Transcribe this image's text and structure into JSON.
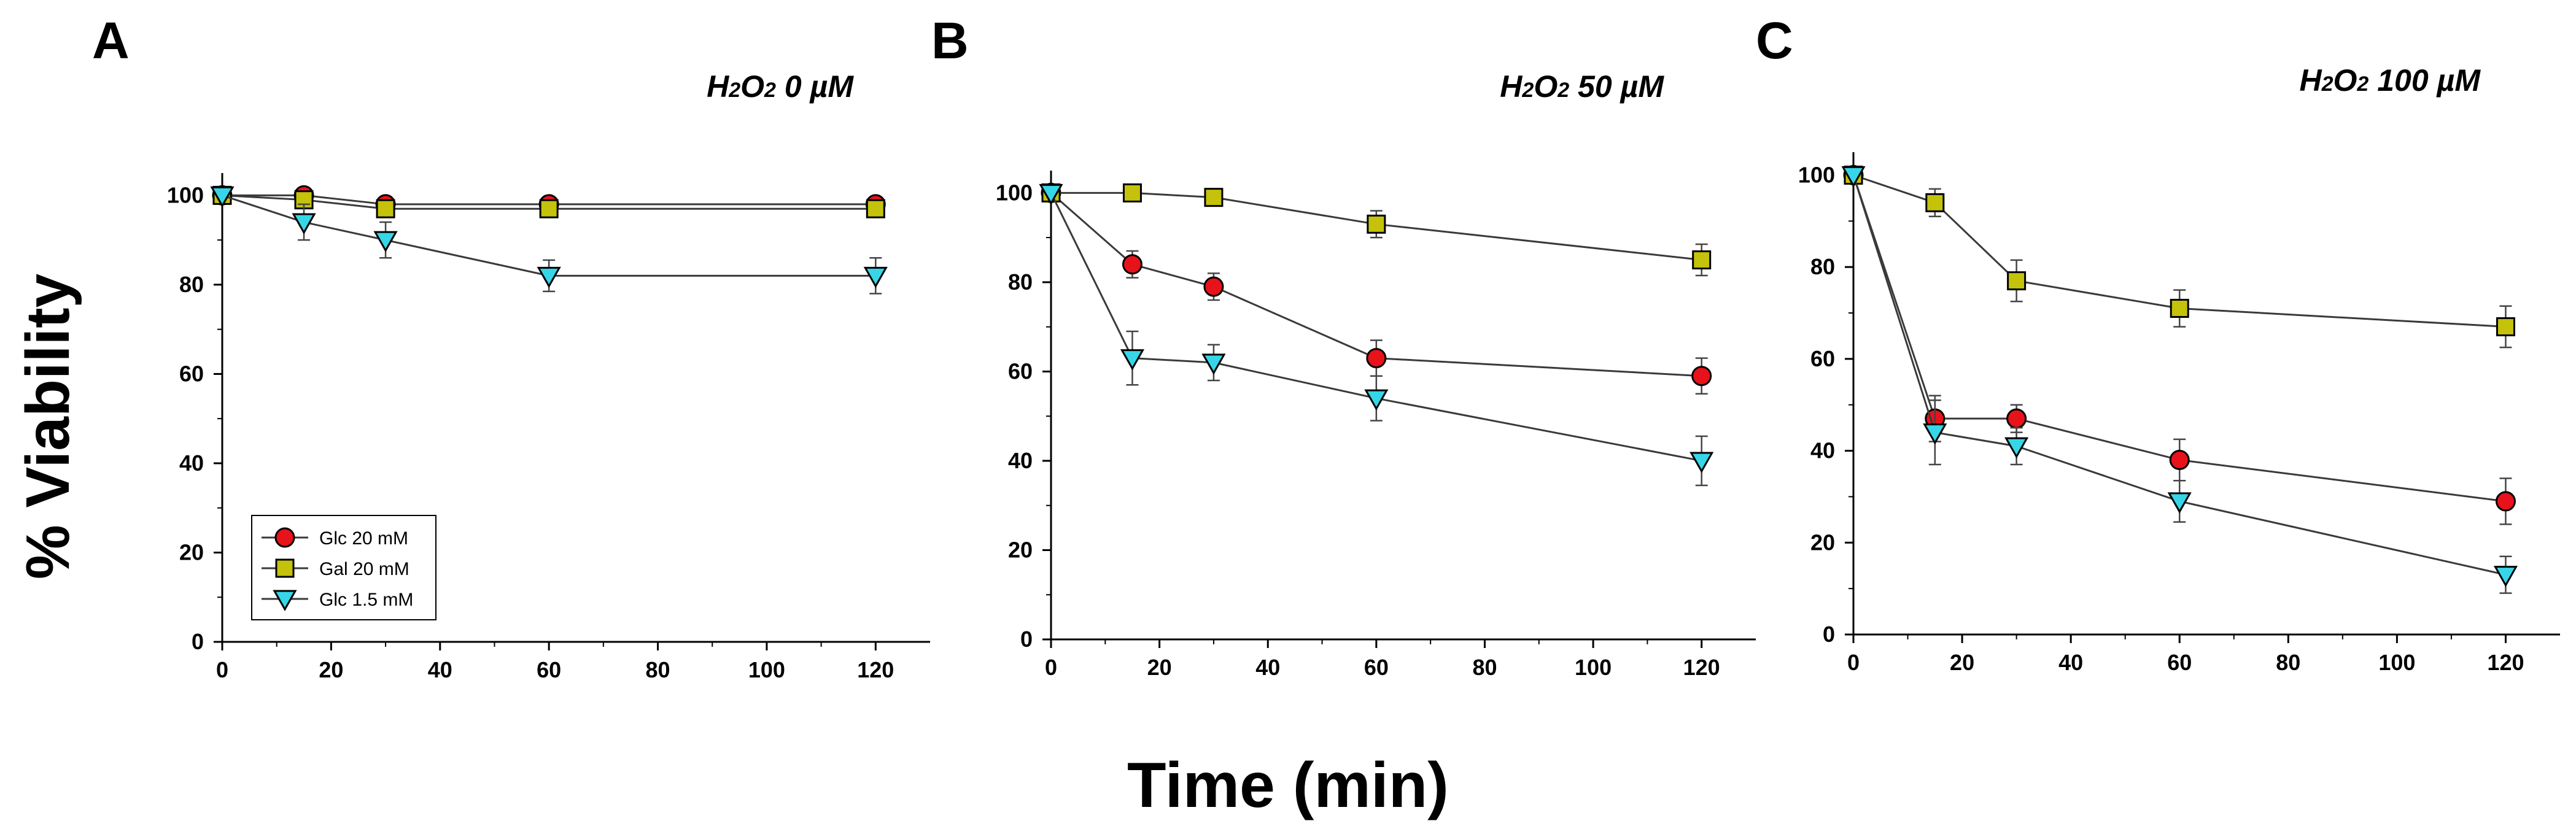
{
  "figure": {
    "ylabel": "% Viability",
    "xlabel": "Time (min)"
  },
  "legend": [
    {
      "name": "Glc 20 mM",
      "color": "#e8121b",
      "marker": "circle"
    },
    {
      "name": "Gal 20 mM",
      "color": "#c4c20a",
      "marker": "square"
    },
    {
      "name": "Glc 1.5 mM",
      "color": "#36d6e8",
      "marker": "triangle-down"
    }
  ],
  "chart_data": [
    {
      "type": "line",
      "panel": "A",
      "title": {
        "prefix": "H",
        "sub1": "2",
        "mid": "O",
        "sub2": "2",
        "rest": " 0 µM"
      },
      "xlim": [
        0,
        130
      ],
      "ylim": [
        0,
        105
      ],
      "xticks": [
        0,
        20,
        40,
        60,
        80,
        100,
        120
      ],
      "yticks": [
        0,
        20,
        40,
        60,
        80,
        100
      ],
      "x": [
        0,
        15,
        30,
        60,
        120
      ],
      "series": [
        {
          "name": "Glc 20 mM",
          "values": [
            100,
            100,
            98,
            98,
            98
          ],
          "errors": [
            0,
            1.5,
            1.5,
            1.5,
            1.5
          ]
        },
        {
          "name": "Gal 20 mM",
          "values": [
            100,
            99,
            97,
            97,
            97
          ],
          "errors": [
            0,
            1.5,
            1.5,
            1.5,
            1.5
          ]
        },
        {
          "name": "Glc 1.5 mM",
          "values": [
            100,
            94,
            90,
            82,
            82
          ],
          "errors": [
            0,
            4,
            4,
            3.5,
            4
          ]
        }
      ]
    },
    {
      "type": "line",
      "panel": "B",
      "title": {
        "prefix": "H",
        "sub1": "2",
        "mid": "O",
        "sub2": "2",
        "rest": " 50 µM"
      },
      "xlim": [
        0,
        130
      ],
      "ylim": [
        0,
        105
      ],
      "xticks": [
        0,
        20,
        40,
        60,
        80,
        100,
        120
      ],
      "yticks": [
        0,
        20,
        40,
        60,
        80,
        100
      ],
      "x": [
        0,
        15,
        30,
        60,
        120
      ],
      "series": [
        {
          "name": "Glc 20 mM",
          "values": [
            100,
            84,
            79,
            63,
            59
          ],
          "errors": [
            0,
            3,
            3,
            4,
            4
          ]
        },
        {
          "name": "Gal 20 mM",
          "values": [
            100,
            100,
            99,
            93,
            85
          ],
          "errors": [
            0,
            1,
            1.5,
            3,
            3.5
          ]
        },
        {
          "name": "Glc 1.5 mM",
          "values": [
            100,
            63,
            62,
            54,
            40
          ],
          "errors": [
            0,
            6,
            4,
            5,
            5.5
          ]
        }
      ]
    },
    {
      "type": "line",
      "panel": "C",
      "title": {
        "prefix": "H",
        "sub1": "2",
        "mid": "O",
        "sub2": "2",
        "rest": " 100 µM"
      },
      "xlim": [
        0,
        130
      ],
      "ylim": [
        0,
        105
      ],
      "xticks": [
        0,
        20,
        40,
        60,
        80,
        100,
        120
      ],
      "yticks": [
        0,
        20,
        40,
        60,
        80,
        100
      ],
      "x": [
        0,
        15,
        30,
        60,
        120
      ],
      "series": [
        {
          "name": "Glc 20 mM",
          "values": [
            100,
            47,
            47,
            38,
            29
          ],
          "errors": [
            0,
            5,
            3,
            4.5,
            5
          ]
        },
        {
          "name": "Gal 20 mM",
          "values": [
            100,
            94,
            77,
            71,
            67
          ],
          "errors": [
            0,
            3,
            4.5,
            4,
            4.5
          ]
        },
        {
          "name": "Glc 1.5 mM",
          "values": [
            100,
            44,
            41,
            29,
            13
          ],
          "errors": [
            0,
            7,
            4,
            4.5,
            4
          ]
        }
      ]
    }
  ]
}
